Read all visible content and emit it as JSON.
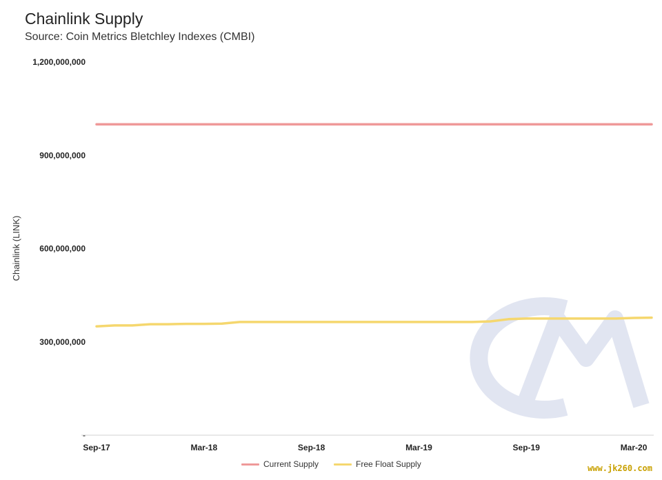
{
  "title": "Chainlink Supply",
  "subtitle": "Source: Coin Metrics Bletchley Indexes (CMBI)",
  "watermark": "www.jk260.com",
  "logo_text": "CM",
  "chart_data": {
    "type": "line",
    "ylabel": "Chainlink (LINK)",
    "ylim": [
      0,
      1200000000
    ],
    "yticks": [
      0,
      300000000,
      600000000,
      900000000,
      1200000000
    ],
    "ytick_labels": [
      "-",
      "300,000,000",
      "600,000,000",
      "900,000,000",
      "1,200,000,000"
    ],
    "xlim": [
      "2017-09",
      "2020-04"
    ],
    "xticks": [
      "2017-09",
      "2018-03",
      "2018-09",
      "2019-03",
      "2019-09",
      "2020-03"
    ],
    "xtick_labels": [
      "Sep-17",
      "Mar-18",
      "Sep-18",
      "Mar-19",
      "Sep-19",
      "Mar-20"
    ],
    "grid": false,
    "legend_position": "bottom",
    "series": [
      {
        "name": "Current Supply",
        "color": "#ef9999",
        "points": [
          [
            "2017-09",
            1000000000
          ],
          [
            "2020-04",
            1000000000
          ]
        ]
      },
      {
        "name": "Free Float Supply",
        "color": "#f5d76e",
        "points": [
          [
            "2017-09",
            350000000
          ],
          [
            "2017-10",
            353000000
          ],
          [
            "2017-11",
            353000000
          ],
          [
            "2017-12",
            357000000
          ],
          [
            "2018-01",
            357000000
          ],
          [
            "2018-02",
            358000000
          ],
          [
            "2018-03",
            358000000
          ],
          [
            "2018-04",
            359000000
          ],
          [
            "2018-05",
            364000000
          ],
          [
            "2018-06",
            364000000
          ],
          [
            "2018-09",
            364000000
          ],
          [
            "2019-03",
            364000000
          ],
          [
            "2019-06",
            364000000
          ],
          [
            "2019-07",
            366000000
          ],
          [
            "2019-08",
            373000000
          ],
          [
            "2019-09",
            375000000
          ],
          [
            "2019-12",
            375000000
          ],
          [
            "2020-02",
            375000000
          ],
          [
            "2020-03",
            377000000
          ],
          [
            "2020-04",
            378000000
          ]
        ]
      }
    ]
  }
}
